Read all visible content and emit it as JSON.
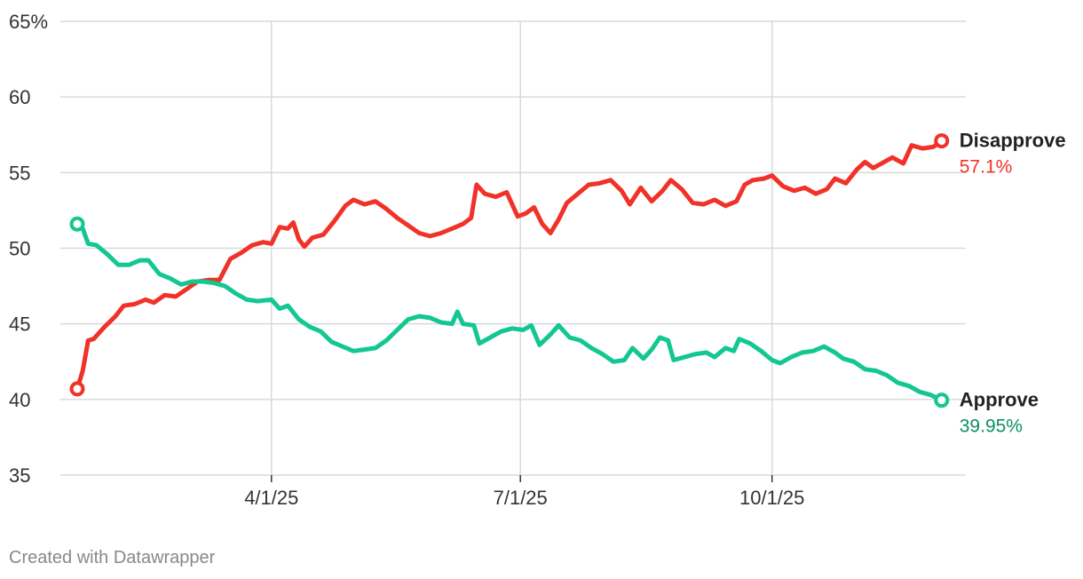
{
  "chart_data": {
    "type": "line",
    "title": "",
    "xlabel": "",
    "ylabel": "",
    "ylim": [
      35,
      65
    ],
    "y_ticks": [
      {
        "value": 65,
        "label": "65%"
      },
      {
        "value": 60,
        "label": "60"
      },
      {
        "value": 55,
        "label": "55"
      },
      {
        "value": 50,
        "label": "50"
      },
      {
        "value": 45,
        "label": "45"
      },
      {
        "value": 40,
        "label": "40"
      },
      {
        "value": 35,
        "label": "35"
      }
    ],
    "x_range": [
      "2025-01-20",
      "2025-12-05"
    ],
    "x_ticks": [
      {
        "date": "2025-04-01",
        "label": "4/1/25"
      },
      {
        "date": "2025-07-01",
        "label": "7/1/25"
      },
      {
        "date": "2025-10-01",
        "label": "10/1/25"
      }
    ],
    "grid": true,
    "legend": "direct labels at line ends",
    "series": [
      {
        "name": "Disapprove",
        "color": "#f03228",
        "end_label": "Disapprove",
        "end_value_label": "57.1%",
        "points": [
          [
            "2025-01-20",
            40.7
          ],
          [
            "2025-01-22",
            41.9
          ],
          [
            "2025-01-24",
            43.9
          ],
          [
            "2025-01-26",
            44.0
          ],
          [
            "2025-01-30",
            44.8
          ],
          [
            "2025-02-03",
            45.5
          ],
          [
            "2025-02-06",
            46.2
          ],
          [
            "2025-02-10",
            46.3
          ],
          [
            "2025-02-14",
            46.6
          ],
          [
            "2025-02-17",
            46.4
          ],
          [
            "2025-02-21",
            46.9
          ],
          [
            "2025-02-25",
            46.8
          ],
          [
            "2025-03-01",
            47.3
          ],
          [
            "2025-03-05",
            47.8
          ],
          [
            "2025-03-09",
            47.9
          ],
          [
            "2025-03-13",
            47.9
          ],
          [
            "2025-03-17",
            49.3
          ],
          [
            "2025-03-21",
            49.7
          ],
          [
            "2025-03-25",
            50.2
          ],
          [
            "2025-03-29",
            50.4
          ],
          [
            "2025-04-01",
            50.3
          ],
          [
            "2025-04-04",
            51.4
          ],
          [
            "2025-04-07",
            51.3
          ],
          [
            "2025-04-09",
            51.7
          ],
          [
            "2025-04-11",
            50.6
          ],
          [
            "2025-04-13",
            50.1
          ],
          [
            "2025-04-16",
            50.7
          ],
          [
            "2025-04-20",
            50.9
          ],
          [
            "2025-04-24",
            51.8
          ],
          [
            "2025-04-28",
            52.8
          ],
          [
            "2025-05-01",
            53.2
          ],
          [
            "2025-05-05",
            52.9
          ],
          [
            "2025-05-09",
            53.1
          ],
          [
            "2025-05-13",
            52.6
          ],
          [
            "2025-05-17",
            52.0
          ],
          [
            "2025-05-21",
            51.5
          ],
          [
            "2025-05-25",
            51.0
          ],
          [
            "2025-05-29",
            50.8
          ],
          [
            "2025-06-02",
            51.0
          ],
          [
            "2025-06-06",
            51.3
          ],
          [
            "2025-06-10",
            51.6
          ],
          [
            "2025-06-13",
            52.0
          ],
          [
            "2025-06-15",
            54.2
          ],
          [
            "2025-06-18",
            53.6
          ],
          [
            "2025-06-22",
            53.4
          ],
          [
            "2025-06-26",
            53.7
          ],
          [
            "2025-06-30",
            52.1
          ],
          [
            "2025-07-03",
            52.3
          ],
          [
            "2025-07-06",
            52.7
          ],
          [
            "2025-07-09",
            51.6
          ],
          [
            "2025-07-12",
            51.0
          ],
          [
            "2025-07-15",
            51.9
          ],
          [
            "2025-07-18",
            53.0
          ],
          [
            "2025-07-22",
            53.6
          ],
          [
            "2025-07-26",
            54.2
          ],
          [
            "2025-07-30",
            54.3
          ],
          [
            "2025-08-03",
            54.5
          ],
          [
            "2025-08-07",
            53.8
          ],
          [
            "2025-08-10",
            52.9
          ],
          [
            "2025-08-14",
            54.0
          ],
          [
            "2025-08-18",
            53.1
          ],
          [
            "2025-08-22",
            53.8
          ],
          [
            "2025-08-25",
            54.5
          ],
          [
            "2025-08-29",
            53.9
          ],
          [
            "2025-09-02",
            53.0
          ],
          [
            "2025-09-06",
            52.9
          ],
          [
            "2025-09-10",
            53.2
          ],
          [
            "2025-09-14",
            52.8
          ],
          [
            "2025-09-18",
            53.1
          ],
          [
            "2025-09-21",
            54.2
          ],
          [
            "2025-09-24",
            54.5
          ],
          [
            "2025-09-28",
            54.6
          ],
          [
            "2025-10-01",
            54.8
          ],
          [
            "2025-10-05",
            54.1
          ],
          [
            "2025-10-09",
            53.8
          ],
          [
            "2025-10-13",
            54.0
          ],
          [
            "2025-10-17",
            53.6
          ],
          [
            "2025-10-21",
            53.9
          ],
          [
            "2025-10-24",
            54.6
          ],
          [
            "2025-10-28",
            54.3
          ],
          [
            "2025-11-01",
            55.2
          ],
          [
            "2025-11-04",
            55.7
          ],
          [
            "2025-11-07",
            55.3
          ],
          [
            "2025-11-10",
            55.6
          ],
          [
            "2025-11-14",
            56.0
          ],
          [
            "2025-11-18",
            55.6
          ],
          [
            "2025-11-21",
            56.8
          ],
          [
            "2025-11-25",
            56.6
          ],
          [
            "2025-11-29",
            56.7
          ],
          [
            "2025-12-02",
            57.1
          ]
        ]
      },
      {
        "name": "Approve",
        "color": "#12c792",
        "end_label": "Approve",
        "end_value_label": "39.95%",
        "end_value_color": "#0a8f64",
        "points": [
          [
            "2025-01-20",
            51.6
          ],
          [
            "2025-01-22",
            51.3
          ],
          [
            "2025-01-24",
            50.3
          ],
          [
            "2025-01-27",
            50.2
          ],
          [
            "2025-01-31",
            49.6
          ],
          [
            "2025-02-04",
            48.9
          ],
          [
            "2025-02-08",
            48.9
          ],
          [
            "2025-02-12",
            49.2
          ],
          [
            "2025-02-15",
            49.2
          ],
          [
            "2025-02-19",
            48.3
          ],
          [
            "2025-02-23",
            48.0
          ],
          [
            "2025-02-27",
            47.6
          ],
          [
            "2025-03-03",
            47.8
          ],
          [
            "2025-03-07",
            47.8
          ],
          [
            "2025-03-11",
            47.7
          ],
          [
            "2025-03-15",
            47.5
          ],
          [
            "2025-03-19",
            47.0
          ],
          [
            "2025-03-23",
            46.6
          ],
          [
            "2025-03-27",
            46.5
          ],
          [
            "2025-04-01",
            46.6
          ],
          [
            "2025-04-04",
            46.0
          ],
          [
            "2025-04-07",
            46.2
          ],
          [
            "2025-04-11",
            45.3
          ],
          [
            "2025-04-15",
            44.8
          ],
          [
            "2025-04-19",
            44.5
          ],
          [
            "2025-04-23",
            43.8
          ],
          [
            "2025-04-27",
            43.5
          ],
          [
            "2025-05-01",
            43.2
          ],
          [
            "2025-05-05",
            43.3
          ],
          [
            "2025-05-09",
            43.4
          ],
          [
            "2025-05-13",
            43.9
          ],
          [
            "2025-05-17",
            44.6
          ],
          [
            "2025-05-21",
            45.3
          ],
          [
            "2025-05-25",
            45.5
          ],
          [
            "2025-05-29",
            45.4
          ],
          [
            "2025-06-02",
            45.1
          ],
          [
            "2025-06-06",
            45.0
          ],
          [
            "2025-06-08",
            45.8
          ],
          [
            "2025-06-10",
            45.0
          ],
          [
            "2025-06-14",
            44.9
          ],
          [
            "2025-06-16",
            43.7
          ],
          [
            "2025-06-20",
            44.1
          ],
          [
            "2025-06-24",
            44.5
          ],
          [
            "2025-06-28",
            44.7
          ],
          [
            "2025-07-02",
            44.6
          ],
          [
            "2025-07-05",
            44.9
          ],
          [
            "2025-07-08",
            43.6
          ],
          [
            "2025-07-12",
            44.3
          ],
          [
            "2025-07-15",
            44.9
          ],
          [
            "2025-07-19",
            44.1
          ],
          [
            "2025-07-23",
            43.9
          ],
          [
            "2025-07-27",
            43.4
          ],
          [
            "2025-07-31",
            43.0
          ],
          [
            "2025-08-04",
            42.5
          ],
          [
            "2025-08-08",
            42.6
          ],
          [
            "2025-08-11",
            43.4
          ],
          [
            "2025-08-15",
            42.7
          ],
          [
            "2025-08-18",
            43.3
          ],
          [
            "2025-08-21",
            44.1
          ],
          [
            "2025-08-24",
            43.9
          ],
          [
            "2025-08-26",
            42.6
          ],
          [
            "2025-08-30",
            42.8
          ],
          [
            "2025-09-03",
            43.0
          ],
          [
            "2025-09-07",
            43.1
          ],
          [
            "2025-09-10",
            42.8
          ],
          [
            "2025-09-14",
            43.4
          ],
          [
            "2025-09-17",
            43.2
          ],
          [
            "2025-09-19",
            44.0
          ],
          [
            "2025-09-23",
            43.7
          ],
          [
            "2025-09-27",
            43.2
          ],
          [
            "2025-10-01",
            42.6
          ],
          [
            "2025-10-04",
            42.4
          ],
          [
            "2025-10-08",
            42.8
          ],
          [
            "2025-10-12",
            43.1
          ],
          [
            "2025-10-16",
            43.2
          ],
          [
            "2025-10-20",
            43.5
          ],
          [
            "2025-10-24",
            43.1
          ],
          [
            "2025-10-27",
            42.7
          ],
          [
            "2025-10-31",
            42.5
          ],
          [
            "2025-11-04",
            42.0
          ],
          [
            "2025-11-08",
            41.9
          ],
          [
            "2025-11-12",
            41.6
          ],
          [
            "2025-11-16",
            41.1
          ],
          [
            "2025-11-20",
            40.9
          ],
          [
            "2025-11-24",
            40.5
          ],
          [
            "2025-11-28",
            40.3
          ],
          [
            "2025-12-02",
            39.95
          ]
        ]
      }
    ]
  },
  "footer": {
    "credit": "Created with Datawrapper"
  }
}
